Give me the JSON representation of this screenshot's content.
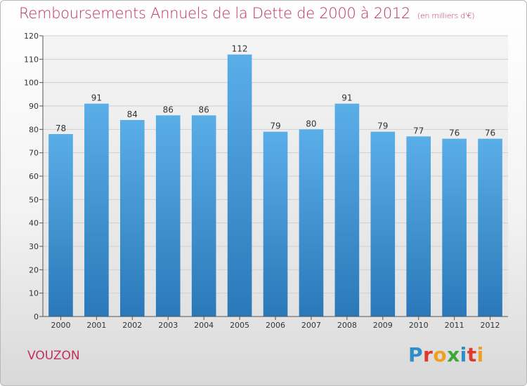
{
  "header": {
    "title": "Remboursements Annuels de la Dette de 2000 à 2012",
    "subtitle": "(en milliers d'€)"
  },
  "footer": {
    "town": "VOUZON",
    "logo_letters": [
      "P",
      "r",
      "o",
      "x",
      "i",
      "t",
      "i"
    ],
    "logo_colors": [
      "#2e8ec8",
      "#e03a2e",
      "#f0a020",
      "#3aa83a",
      "#2e8ec8",
      "#e03a2e",
      "#f0a020"
    ]
  },
  "colors": {
    "bar_top": "#5aaee8",
    "bar_bottom": "#2a78b8",
    "title": "#c0305a"
  },
  "chart_data": {
    "type": "bar",
    "categories": [
      "2000",
      "2001",
      "2002",
      "2003",
      "2004",
      "2005",
      "2006",
      "2007",
      "2008",
      "2009",
      "2010",
      "2011",
      "2012"
    ],
    "values": [
      78,
      91,
      84,
      86,
      86,
      112,
      79,
      80,
      91,
      79,
      77,
      76,
      76
    ],
    "title": "Remboursements Annuels de la Dette de 2000 à 2012",
    "xlabel": "",
    "ylabel": "",
    "ylim": [
      0,
      120
    ],
    "yticks": [
      0,
      10,
      20,
      30,
      40,
      50,
      60,
      70,
      80,
      90,
      100,
      110,
      120
    ],
    "grid": true,
    "data_labels": true
  }
}
